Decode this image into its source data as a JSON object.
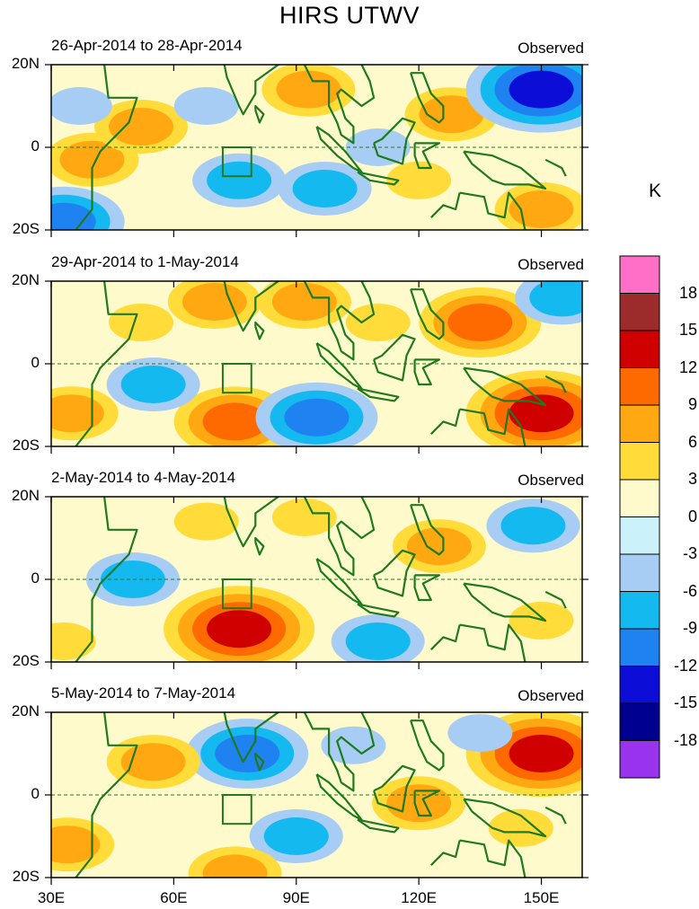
{
  "chart_data": {
    "type": "heatmap",
    "title": "HIRS UTWV",
    "units": "K",
    "x_axis": {
      "ticks": [
        "30E",
        "60E",
        "90E",
        "120E",
        "150E"
      ],
      "values": [
        30,
        60,
        90,
        120,
        150
      ],
      "range": [
        30,
        160
      ]
    },
    "y_axis": {
      "ticks": [
        "20N",
        "0",
        "20S"
      ],
      "values": [
        20,
        0,
        -20
      ],
      "range": [
        -20,
        20
      ]
    },
    "colorbar": {
      "levels": [
        "18",
        "15",
        "12",
        "9",
        "6",
        "3",
        "0",
        "-3",
        "-6",
        "-9",
        "-12",
        "-15",
        "-18"
      ],
      "colors": [
        "#ff6ec7",
        "#9c2b2b",
        "#d10000",
        "#ff6a00",
        "#ffa812",
        "#ffdc3a",
        "#fffacb",
        "#cbf2fa",
        "#a8cdf5",
        "#14b9f0",
        "#1e82f0",
        "#0c0ed8",
        "#000090",
        "#9933ee"
      ]
    },
    "box_region": {
      "lon": [
        72,
        79
      ],
      "lat": [
        -7,
        0
      ]
    },
    "panels": [
      {
        "date_range": "26-Apr-2014 to 28-Apr-2014",
        "tag": "Observed",
        "anomalies": [
          {
            "lon": 40,
            "lat": -3,
            "value": 7
          },
          {
            "lon": 52,
            "lat": 5,
            "value": 6
          },
          {
            "lon": 37,
            "lat": 10,
            "value": -4
          },
          {
            "lon": 76,
            "lat": -8,
            "value": -8
          },
          {
            "lon": 93,
            "lat": 14,
            "value": 6
          },
          {
            "lon": 97,
            "lat": -10,
            "value": -8
          },
          {
            "lon": 128,
            "lat": 8,
            "value": 7
          },
          {
            "lon": 150,
            "lat": 14,
            "value": -14
          },
          {
            "lon": 120,
            "lat": -8,
            "value": 5
          },
          {
            "lon": 68,
            "lat": 10,
            "value": -3
          },
          {
            "lon": 150,
            "lat": -15,
            "value": 6
          },
          {
            "lon": 33,
            "lat": -18,
            "value": -10
          },
          {
            "lon": 110,
            "lat": 0,
            "value": -4
          }
        ]
      },
      {
        "date_range": "29-Apr-2014 to 1-May-2014",
        "tag": "Observed",
        "anomalies": [
          {
            "lon": 75,
            "lat": -14,
            "value": 9
          },
          {
            "lon": 55,
            "lat": -5,
            "value": -7
          },
          {
            "lon": 135,
            "lat": 10,
            "value": 9
          },
          {
            "lon": 150,
            "lat": -12,
            "value": 12
          },
          {
            "lon": 95,
            "lat": -13,
            "value": -9
          },
          {
            "lon": 92,
            "lat": 15,
            "value": 7
          },
          {
            "lon": 110,
            "lat": 10,
            "value": 4
          },
          {
            "lon": 52,
            "lat": 10,
            "value": 5
          },
          {
            "lon": 155,
            "lat": 16,
            "value": -8
          },
          {
            "lon": 70,
            "lat": 15,
            "value": 6
          },
          {
            "lon": 35,
            "lat": -12,
            "value": 6
          }
        ]
      },
      {
        "date_range": "2-May-2014 to 4-May-2014",
        "tag": "Observed",
        "anomalies": [
          {
            "lon": 76,
            "lat": -12,
            "value": 14
          },
          {
            "lon": 125,
            "lat": 8,
            "value": 8
          },
          {
            "lon": 110,
            "lat": -15,
            "value": -8
          },
          {
            "lon": 50,
            "lat": 0,
            "value": -6
          },
          {
            "lon": 68,
            "lat": 14,
            "value": 5
          },
          {
            "lon": 92,
            "lat": 15,
            "value": 5
          },
          {
            "lon": 148,
            "lat": 13,
            "value": -8
          },
          {
            "lon": 33,
            "lat": -15,
            "value": 5
          },
          {
            "lon": 150,
            "lat": -10,
            "value": 4
          }
        ]
      },
      {
        "date_range": "5-May-2014 to 7-May-2014",
        "tag": "Observed",
        "anomalies": [
          {
            "lon": 78,
            "lat": 10,
            "value": -10
          },
          {
            "lon": 150,
            "lat": 10,
            "value": 13
          },
          {
            "lon": 55,
            "lat": 8,
            "value": 6
          },
          {
            "lon": 120,
            "lat": -2,
            "value": 8
          },
          {
            "lon": 34,
            "lat": -12,
            "value": 7
          },
          {
            "lon": 90,
            "lat": -10,
            "value": -6
          },
          {
            "lon": 75,
            "lat": -19,
            "value": 6
          },
          {
            "lon": 145,
            "lat": -8,
            "value": 4
          },
          {
            "lon": 135,
            "lat": 15,
            "value": -5
          },
          {
            "lon": 104,
            "lat": 12,
            "value": -3
          }
        ]
      }
    ]
  }
}
